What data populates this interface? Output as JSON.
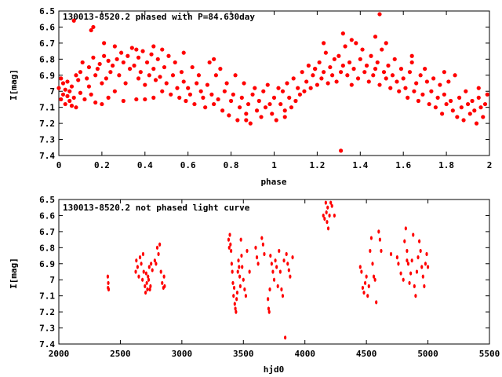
{
  "chart_data": [
    {
      "type": "scatter",
      "title": "130013-8520.2 phased with P=84.630day",
      "xlabel": "phase",
      "ylabel": "I[mag]",
      "xlim": [
        0,
        2
      ],
      "ylim": [
        7.4,
        6.5
      ],
      "y_inverted": true,
      "xticks": [
        "0",
        "0.2",
        "0.4",
        "0.6",
        "0.8",
        "1",
        "1.2",
        "1.4",
        "1.6",
        "1.8",
        "2"
      ],
      "yticks": [
        "6.5",
        "6.6",
        "6.7",
        "6.8",
        "6.9",
        "7",
        "7.1",
        "7.2",
        "7.3",
        "7.4"
      ],
      "grid": false,
      "marker_color": "#ff0000",
      "series": [
        {
          "x": [
            0.0,
            0.01,
            0.01,
            0.02,
            0.02,
            0.03,
            0.03,
            0.04,
            0.04,
            0.05,
            0.05,
            0.06,
            0.06,
            0.07,
            0.08,
            0.08,
            0.09,
            0.1,
            0.1,
            0.11,
            0.12,
            0.13,
            0.14,
            0.14,
            0.15,
            0.16,
            0.17,
            0.17,
            0.18,
            0.19,
            0.2,
            0.2,
            0.21,
            0.22,
            0.23,
            0.23,
            0.24,
            0.25,
            0.26,
            0.26,
            0.27,
            0.28,
            0.29,
            0.3,
            0.3,
            0.31,
            0.32,
            0.33,
            0.34,
            0.35,
            0.36,
            0.37,
            0.37,
            0.38,
            0.39,
            0.4,
            0.4,
            0.41,
            0.42,
            0.43,
            0.44,
            0.44,
            0.45,
            0.46,
            0.47,
            0.48,
            0.48,
            0.49,
            0.5,
            0.51,
            0.52,
            0.53,
            0.54,
            0.55,
            0.56,
            0.57,
            0.58,
            0.59,
            0.6,
            0.61,
            0.62,
            0.63,
            0.64,
            0.65,
            0.66,
            0.67,
            0.68,
            0.69,
            0.7,
            0.71,
            0.72,
            0.73,
            0.74,
            0.75,
            0.76,
            0.77,
            0.78,
            0.79,
            0.8,
            0.81,
            0.82,
            0.83,
            0.84,
            0.85,
            0.86,
            0.87,
            0.88,
            0.89,
            0.9,
            0.91,
            0.92,
            0.93,
            0.94,
            0.95,
            0.96,
            0.97,
            0.98,
            0.99,
            1.0,
            1.01,
            1.02,
            1.03,
            1.04,
            1.05,
            1.06,
            1.07,
            1.08,
            1.09,
            1.1,
            1.11,
            1.12,
            1.13,
            1.14,
            1.15,
            1.16,
            1.17,
            1.18,
            1.19,
            1.2,
            1.21,
            1.22,
            1.23,
            1.24,
            1.25,
            1.26,
            1.27,
            1.28,
            1.29,
            1.3,
            1.31,
            1.32,
            1.33,
            1.34,
            1.35,
            1.36,
            1.37,
            1.38,
            1.39,
            1.4,
            1.41,
            1.42,
            1.43,
            1.44,
            1.45,
            1.46,
            1.47,
            1.48,
            1.49,
            1.5,
            1.51,
            1.52,
            1.53,
            1.54,
            1.55,
            1.56,
            1.57,
            1.58,
            1.59,
            1.6,
            1.61,
            1.62,
            1.63,
            1.64,
            1.65,
            1.66,
            1.67,
            1.68,
            1.69,
            1.7,
            1.71,
            1.72,
            1.73,
            1.74,
            1.75,
            1.76,
            1.77,
            1.78,
            1.79,
            1.8,
            1.81,
            1.82,
            1.83,
            1.84,
            1.85,
            1.86,
            1.87,
            1.88,
            1.89,
            1.9,
            1.91,
            1.92,
            1.93,
            1.94,
            1.95,
            1.96,
            1.97,
            1.98,
            1.99,
            0.07,
            0.15,
            0.16,
            0.21,
            0.36,
            0.44,
            0.58,
            0.72,
            0.87,
            1.05,
            1.19,
            1.23,
            1.31,
            1.32,
            1.36,
            1.47,
            1.49,
            1.52,
            1.64,
            1.79,
            1.95
          ],
          "y": [
            6.98,
            7.05,
            6.92,
            7.02,
            6.95,
            7.08,
            6.99,
            7.03,
            6.94,
            7.0,
            7.06,
            6.97,
            7.09,
            7.04,
            6.9,
            7.1,
            6.93,
            6.88,
            7.01,
            6.82,
            7.05,
            6.92,
            6.97,
            6.85,
            7.02,
            6.79,
            6.9,
            7.07,
            6.86,
            6.83,
            6.95,
            7.08,
            6.78,
            6.92,
            6.81,
            7.04,
            6.88,
            6.84,
            6.72,
            7.0,
            6.8,
            6.9,
            6.76,
            6.82,
            7.06,
            6.95,
            6.78,
            6.86,
            6.73,
            6.84,
            7.05,
            6.92,
            6.79,
            6.88,
            6.75,
            6.96,
            7.05,
            6.82,
            6.9,
            6.77,
            6.86,
            7.04,
            6.93,
            6.8,
            6.91,
            6.74,
            7.0,
            6.85,
            6.95,
            6.78,
            7.02,
            6.9,
            6.82,
            6.98,
            7.04,
            6.88,
            6.94,
            7.06,
            6.98,
            7.02,
            6.85,
            7.08,
            6.95,
            6.9,
            7.0,
            7.04,
            7.1,
            6.96,
            6.82,
            7.02,
            7.08,
            6.9,
            7.05,
            6.86,
            7.12,
            7.0,
            6.95,
            7.15,
            7.06,
            7.02,
            6.9,
            7.18,
            7.1,
            7.04,
            6.95,
            7.14,
            7.08,
            7.2,
            7.02,
            6.98,
            7.12,
            7.06,
            7.16,
            7.0,
            7.1,
            6.96,
            7.08,
            7.14,
            7.04,
            7.18,
            6.98,
            7.08,
            7.0,
            7.12,
            6.95,
            7.04,
            7.1,
            6.92,
            7.06,
            6.98,
            7.02,
            6.88,
            7.0,
            6.94,
            6.84,
            6.98,
            6.9,
            6.86,
            6.96,
            6.82,
            6.92,
            6.88,
            6.76,
            6.95,
            6.85,
            6.9,
            6.8,
            6.94,
            6.78,
            6.88,
            6.84,
            6.72,
            6.9,
            6.82,
            6.96,
            6.86,
            6.7,
            6.92,
            6.8,
            6.74,
            6.88,
            6.84,
            6.94,
            6.78,
            6.9,
            6.86,
            6.82,
            6.96,
            6.74,
            6.88,
            6.92,
            6.84,
            6.98,
            6.9,
            6.8,
            6.94,
            7.0,
            6.86,
            6.92,
            6.98,
            7.04,
            6.88,
            6.82,
            7.0,
            6.95,
            7.06,
            6.9,
            7.02,
            6.86,
            6.94,
            7.08,
            7.0,
            6.92,
            7.1,
            7.04,
            6.96,
            7.14,
            7.02,
            7.08,
            6.94,
            7.06,
            7.12,
            6.9,
            7.16,
            7.04,
            7.1,
            7.18,
            7.0,
            7.08,
            7.14,
            7.06,
            7.12,
            7.2,
            7.04,
            7.1,
            7.16,
            7.08,
            7.02,
            6.56,
            6.62,
            6.6,
            6.7,
            6.74,
            6.72,
            6.76,
            6.8,
            7.18,
            7.16,
            6.86,
            6.7,
            7.37,
            6.64,
            6.68,
            6.66,
            6.52,
            6.7,
            6.78,
            6.88,
            6.98
          ]
        }
      ]
    },
    {
      "type": "scatter",
      "title": "130013-8520.2 not phased light curve",
      "xlabel": "hjd0",
      "ylabel": "I[mag]",
      "xlim": [
        2000,
        5500
      ],
      "ylim": [
        7.4,
        6.5
      ],
      "y_inverted": true,
      "xticks": [
        "2000",
        "2500",
        "3000",
        "3500",
        "4000",
        "4500",
        "5000",
        "5500"
      ],
      "yticks": [
        "6.5",
        "6.6",
        "6.7",
        "6.8",
        "6.9",
        "7",
        "7.1",
        "7.2",
        "7.3",
        "7.4"
      ],
      "grid": false,
      "marker_color": "#ff0000",
      "series": [
        {
          "x": [
            2398,
            2400,
            2402,
            2405,
            2625,
            2630,
            2640,
            2650,
            2660,
            2670,
            2680,
            2685,
            2690,
            2700,
            2705,
            2710,
            2715,
            2720,
            2725,
            2730,
            2735,
            2740,
            2745,
            2750,
            2760,
            2780,
            2790,
            2800,
            2810,
            2820,
            2830,
            2840,
            2850,
            2855,
            2860,
            3380,
            3385,
            3390,
            3395,
            3400,
            3405,
            3410,
            3415,
            3420,
            3425,
            3430,
            3435,
            3440,
            3445,
            3450,
            3455,
            3460,
            3465,
            3470,
            3475,
            3480,
            3485,
            3490,
            3500,
            3510,
            3520,
            3530,
            3550,
            3600,
            3610,
            3620,
            3650,
            3660,
            3670,
            3700,
            3705,
            3710,
            3715,
            3720,
            3730,
            3740,
            3750,
            3760,
            3770,
            3780,
            3790,
            3800,
            3810,
            3820,
            3830,
            3850,
            3860,
            3870,
            3880,
            3900,
            4150,
            4160,
            4170,
            4175,
            4180,
            4185,
            4190,
            4200,
            4220,
            4240,
            4450,
            4460,
            4470,
            4480,
            4490,
            4500,
            4510,
            4520,
            4530,
            4540,
            4550,
            4560,
            4570,
            4580,
            4600,
            4610,
            4620,
            4700,
            4750,
            4760,
            4780,
            4800,
            4810,
            4820,
            4830,
            4840,
            4850,
            4860,
            4870,
            4880,
            4890,
            4900,
            4910,
            4920,
            4930,
            4940,
            4950,
            4960,
            4970,
            4980,
            4990,
            5000,
            3840,
            4210,
            4830
          ],
          "y": [
            6.98,
            7.05,
            7.02,
            7.06,
            6.95,
            6.88,
            6.92,
            6.98,
            6.86,
            6.9,
            7.0,
            6.84,
            6.95,
            7.04,
            7.08,
            6.96,
            7.02,
            7.06,
            6.98,
            7.0,
            6.92,
            7.06,
            7.04,
            6.9,
            6.94,
            6.88,
            6.9,
            6.8,
            6.84,
            6.78,
            6.95,
            7.02,
            7.05,
            6.98,
            7.04,
            6.75,
            6.8,
            6.72,
            6.78,
            6.82,
            6.9,
            6.95,
            7.02,
            7.1,
            7.05,
            7.15,
            7.18,
            7.2,
            7.12,
            7.08,
            6.95,
            6.88,
            6.92,
            6.98,
            7.04,
            6.75,
            6.85,
            6.92,
            7.0,
            7.06,
            7.1,
            6.82,
            6.95,
            6.8,
            6.86,
            6.9,
            6.74,
            6.78,
            6.84,
            7.12,
            7.18,
            7.2,
            7.06,
            6.85,
            6.9,
            6.95,
            7.0,
            6.88,
            6.92,
            7.04,
            6.82,
            6.95,
            7.06,
            7.1,
            6.88,
            6.84,
            6.9,
            6.94,
            6.98,
            6.86,
            6.6,
            6.62,
            6.52,
            6.58,
            6.64,
            6.55,
            6.68,
            6.6,
            6.54,
            6.6,
            6.92,
            6.95,
            7.05,
            7.08,
            7.02,
            6.98,
            7.1,
            7.04,
            6.82,
            6.74,
            6.9,
            6.98,
            7.0,
            7.14,
            6.7,
            6.75,
            6.82,
            6.84,
            6.86,
            6.9,
            6.96,
            7.0,
            6.76,
            6.68,
            6.82,
            6.9,
            7.02,
            6.96,
            6.88,
            6.72,
            7.04,
            7.1,
            6.95,
            6.86,
            6.76,
            6.82,
            6.92,
            6.98,
            7.04,
            6.9,
            6.84,
            6.92,
            7.36,
            6.52,
            6.88
          ]
        }
      ]
    }
  ]
}
